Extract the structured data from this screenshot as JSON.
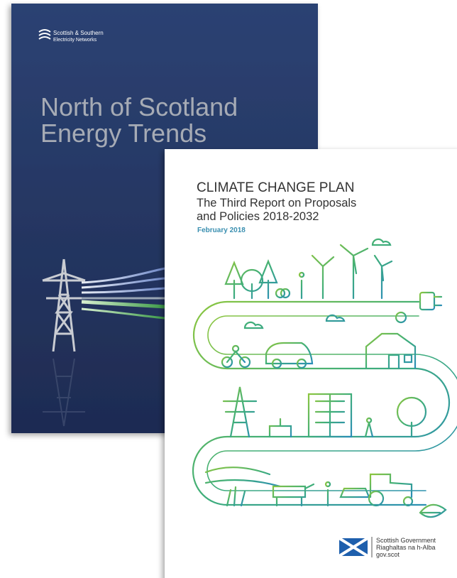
{
  "energy_report": {
    "publisher_line_1": "Scottish & Southern",
    "publisher_line_2": "Electricity Networks",
    "title_line_1": "North of Scotland",
    "title_line_2": "Energy Trends"
  },
  "climate_plan": {
    "title": "CLIMATE CHANGE PLAN",
    "subtitle_line_1": "The Third Report on Proposals",
    "subtitle_line_2": "and Policies 2018-2032",
    "date": "February 2018",
    "logo_line_1": "Scottish Government",
    "logo_line_2": "Riaghaltas na h-Alba",
    "logo_line_3": "gov.scot"
  }
}
